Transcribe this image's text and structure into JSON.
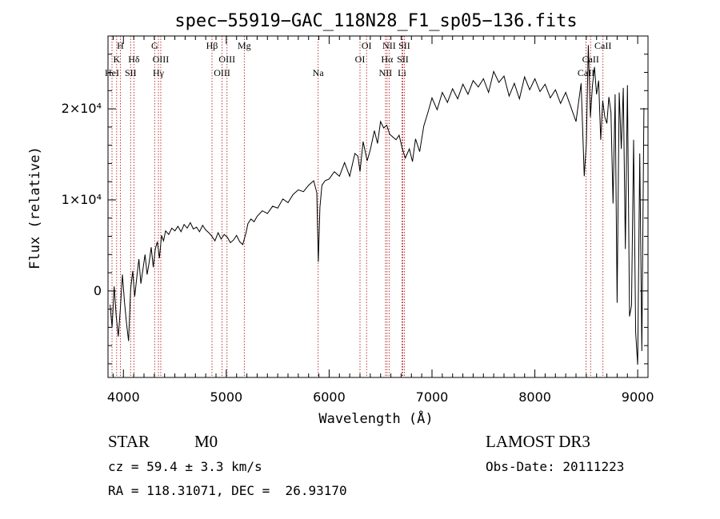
{
  "chart_data": {
    "type": "line",
    "title": "spec−55919−GAC_118N28_F1_sp05−136.fits",
    "xlabel": "Wavelength (Å)",
    "ylabel": "Flux (relative)",
    "xlim": [
      3850,
      9100
    ],
    "ylim": [
      -9500,
      28000
    ],
    "x_ticks": [
      {
        "value": 4000,
        "label": "4000"
      },
      {
        "value": 5000,
        "label": "5000"
      },
      {
        "value": 6000,
        "label": "6000"
      },
      {
        "value": 7000,
        "label": "7000"
      },
      {
        "value": 8000,
        "label": "8000"
      },
      {
        "value": 9000,
        "label": "9000"
      }
    ],
    "y_ticks": [
      {
        "value": 0,
        "label": "0"
      },
      {
        "value": 10000,
        "label": "1×10⁴"
      },
      {
        "value": 20000,
        "label": "2×10⁴"
      }
    ],
    "series": [
      {
        "name": "spectrum",
        "color": "#000000",
        "x": [
          3870,
          3890,
          3910,
          3930,
          3950,
          3970,
          3990,
          4010,
          4030,
          4050,
          4070,
          4090,
          4110,
          4130,
          4150,
          4170,
          4190,
          4210,
          4230,
          4250,
          4270,
          4290,
          4310,
          4330,
          4350,
          4370,
          4390,
          4410,
          4440,
          4470,
          4500,
          4530,
          4560,
          4590,
          4620,
          4650,
          4680,
          4710,
          4740,
          4770,
          4800,
          4830,
          4860,
          4890,
          4920,
          4950,
          4980,
          5010,
          5040,
          5070,
          5100,
          5130,
          5160,
          5190,
          5210,
          5240,
          5270,
          5300,
          5350,
          5400,
          5450,
          5500,
          5550,
          5600,
          5650,
          5700,
          5750,
          5800,
          5850,
          5880,
          5895,
          5910,
          5930,
          5960,
          6000,
          6050,
          6100,
          6150,
          6200,
          6250,
          6280,
          6300,
          6330,
          6370,
          6400,
          6440,
          6470,
          6500,
          6530,
          6560,
          6590,
          6620,
          6650,
          6680,
          6710,
          6740,
          6780,
          6810,
          6840,
          6880,
          6920,
          6960,
          7000,
          7050,
          7100,
          7150,
          7200,
          7250,
          7300,
          7350,
          7400,
          7450,
          7500,
          7550,
          7600,
          7650,
          7700,
          7750,
          7800,
          7850,
          7900,
          7950,
          8000,
          8050,
          8100,
          8150,
          8200,
          8250,
          8300,
          8350,
          8400,
          8450,
          8480,
          8500,
          8520,
          8540,
          8560,
          8580,
          8600,
          8620,
          8640,
          8660,
          8680,
          8700,
          8720,
          8740,
          8760,
          8780,
          8800,
          8820,
          8840,
          8860,
          8880,
          8900,
          8920,
          8940,
          8960,
          8980,
          9000,
          9020,
          9040,
          9060
        ],
        "y": [
          -1500,
          -4000,
          500,
          -2800,
          -5000,
          -2000,
          1800,
          -1200,
          -3500,
          -5500,
          200,
          2200,
          -600,
          1500,
          3500,
          800,
          2400,
          4000,
          1800,
          3100,
          4800,
          2600,
          4600,
          5400,
          3600,
          6100,
          5500,
          6600,
          6200,
          6900,
          6600,
          7100,
          6500,
          7300,
          6900,
          7500,
          6800,
          7000,
          6500,
          7200,
          6700,
          6400,
          6000,
          5500,
          6400,
          5700,
          6200,
          5900,
          5300,
          5600,
          6100,
          5400,
          5100,
          6300,
          7400,
          7900,
          7600,
          8200,
          8800,
          8500,
          9300,
          9100,
          10100,
          9700,
          10600,
          11100,
          10900,
          11600,
          12100,
          10800,
          3200,
          9200,
          11600,
          12100,
          12300,
          13100,
          12600,
          14100,
          12600,
          15100,
          14800,
          13100,
          16400,
          14300,
          15500,
          17600,
          16200,
          18600,
          17900,
          18200,
          17200,
          16900,
          16600,
          17100,
          15700,
          14600,
          15600,
          14200,
          16700,
          15300,
          18100,
          19600,
          21200,
          19900,
          21800,
          20700,
          22200,
          21100,
          22700,
          21600,
          23100,
          22400,
          23300,
          21800,
          24100,
          22900,
          23600,
          21400,
          22800,
          21100,
          23500,
          22100,
          23300,
          21900,
          22700,
          21200,
          22100,
          20600,
          21800,
          20200,
          18600,
          22800,
          12600,
          16100,
          27000,
          19100,
          22600,
          24600,
          21600,
          23100,
          16600,
          20900,
          19100,
          18400,
          21300,
          19600,
          9600,
          21600,
          -1300,
          21800,
          15600,
          22300,
          4600,
          22600,
          -2800,
          -1600,
          16600,
          -4600,
          -8100,
          15100,
          -6600,
          20100
        ]
      }
    ],
    "line_markers": [
      {
        "x": 3934,
        "label": "K",
        "row": 1
      },
      {
        "x": 3970,
        "label": "H",
        "row": 0
      },
      {
        "x": 3889,
        "label": "HeI",
        "row": 2
      },
      {
        "x": 4070,
        "label": "SII",
        "row": 2
      },
      {
        "x": 4102,
        "label": "Hδ",
        "row": 1
      },
      {
        "x": 4304,
        "label": "G",
        "row": 0
      },
      {
        "x": 4340,
        "label": "Hγ",
        "row": 2
      },
      {
        "x": 4363,
        "label": "OIII",
        "row": 1
      },
      {
        "x": 4861,
        "label": "Hβ",
        "row": 0
      },
      {
        "x": 4959,
        "label": "OIII",
        "row": 2
      },
      {
        "x": 5007,
        "label": "OIII",
        "row": 1
      },
      {
        "x": 5175,
        "label": "Mg",
        "row": 0
      },
      {
        "x": 5893,
        "label": "Na",
        "row": 2
      },
      {
        "x": 6300,
        "label": "OI",
        "row": 1
      },
      {
        "x": 6364,
        "label": "OI",
        "row": 0
      },
      {
        "x": 6548,
        "label": "NII",
        "row": 2
      },
      {
        "x": 6563,
        "label": "Hα",
        "row": 1
      },
      {
        "x": 6583,
        "label": "NII",
        "row": 0
      },
      {
        "x": 6708,
        "label": "Li",
        "row": 2
      },
      {
        "x": 6716,
        "label": "SII",
        "row": 1
      },
      {
        "x": 6731,
        "label": "SII",
        "row": 0
      },
      {
        "x": 8498,
        "label": "CaII",
        "row": 2
      },
      {
        "x": 8542,
        "label": "CaII",
        "row": 1
      },
      {
        "x": 8662,
        "label": "CaII",
        "row": 0
      }
    ]
  },
  "info": {
    "object_class": "STAR",
    "subclass": "M0",
    "survey": "LAMOST DR3",
    "redshift": "cz = 59.4 ± 3.3 km/s",
    "obs_date": "Obs-Date: 20111223",
    "coords": "RA = 118.31071, DEC =  26.93170"
  },
  "colors": {
    "spectrum": "#000000",
    "marker_line": "#b22222",
    "axis": "#000000",
    "background": "#ffffff"
  }
}
